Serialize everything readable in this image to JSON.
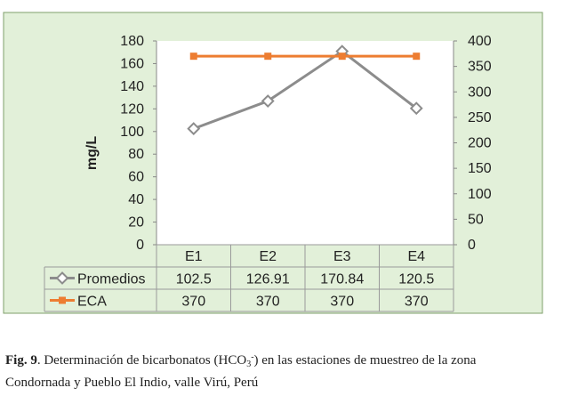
{
  "colors": {
    "panel_bg": "#e2f0d9",
    "panel_border": "#7f9f6b",
    "series_promedios": "#8c8c8c",
    "series_eca": "#ed7d31",
    "grid": "#c8c8c8"
  },
  "chart_data": {
    "type": "line",
    "categories": [
      "E1",
      "E2",
      "E3",
      "E4"
    ],
    "ylabel": "mg/L",
    "ylim_left": [
      0,
      180
    ],
    "yticks_left": [
      0,
      20,
      40,
      60,
      80,
      100,
      120,
      140,
      160,
      180
    ],
    "ylim_right": [
      0,
      400
    ],
    "yticks_right": [
      0,
      50,
      100,
      150,
      200,
      250,
      300,
      350,
      400
    ],
    "grid": false,
    "legend": "data-table",
    "series": [
      {
        "name": "Promedios",
        "axis": "left",
        "values": [
          102.5,
          126.91,
          170.84,
          120.5
        ],
        "labels": [
          "102.5",
          "126.91",
          "170.84",
          "120.5"
        ],
        "marker": "diamond",
        "color": "#8c8c8c"
      },
      {
        "name": "ECA",
        "axis": "right",
        "values": [
          370,
          370,
          370,
          370
        ],
        "labels": [
          "370",
          "370",
          "370",
          "370"
        ],
        "marker": "square",
        "color": "#ed7d31"
      }
    ]
  },
  "caption": {
    "label": "Fig. 9",
    "text_before": ". Determinación de bicarbonatos (HCO",
    "sub": "3",
    "sup": "-",
    "text_after": ") en las estaciones de muestreo de la zona",
    "line2": "Condornada y Pueblo El Indio, valle Virú, Perú"
  }
}
